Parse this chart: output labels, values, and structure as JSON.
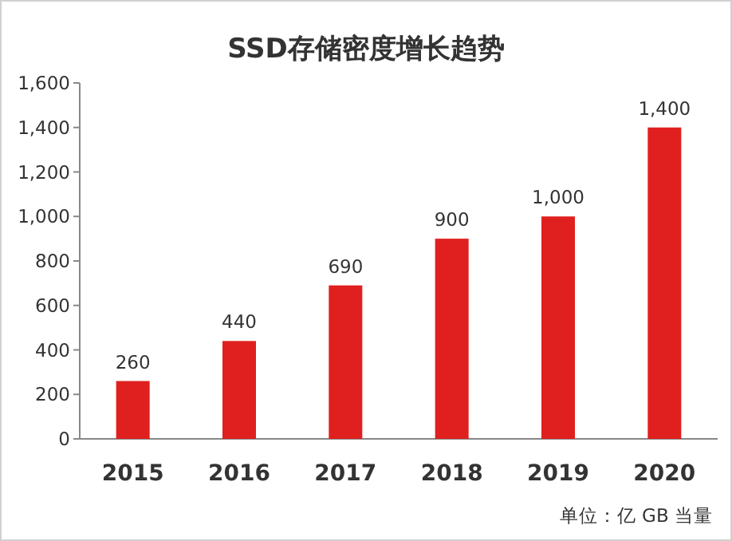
{
  "chart_data": {
    "type": "bar",
    "title": "SSD存储密度增长趋势",
    "categories": [
      "2015",
      "2016",
      "2017",
      "2018",
      "2019",
      "2020"
    ],
    "values": [
      260,
      440,
      690,
      900,
      1000,
      1400
    ],
    "value_labels": [
      "260",
      "440",
      "690",
      "900",
      "1,000",
      "1,400"
    ],
    "color": "#e0201f",
    "ylim": [
      0,
      1600
    ],
    "yticks": [
      0,
      200,
      400,
      600,
      800,
      {
        "value": 1000,
        "label": "1,000"
      },
      {
        "value": 1200,
        "label": "1,200"
      },
      {
        "value": 1400,
        "label": "1,400"
      },
      {
        "value": 1600,
        "label": "1,600"
      }
    ],
    "grid": false,
    "annotations": [
      "单位：亿 GB 当量"
    ]
  }
}
